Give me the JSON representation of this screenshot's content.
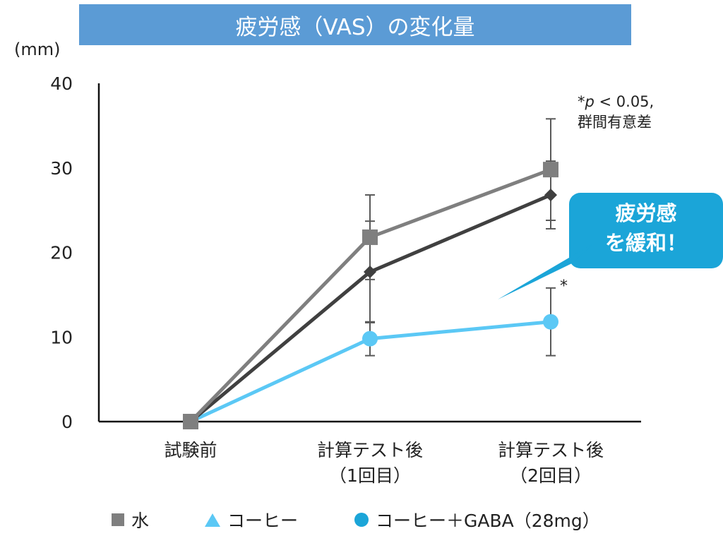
{
  "title": "疲労感（VAS）の変化量",
  "unit_label": "(mm)",
  "note": {
    "p_prefix": "*",
    "p_symbol": "p",
    "p_rest": " < 0.05,",
    "line2": "群間有意差"
  },
  "callout": {
    "line1": "疲労感",
    "line2": "を緩和！",
    "color": "#1ba5d8"
  },
  "significance_marker": "*",
  "chart_data": {
    "type": "line",
    "title": "疲労感（VAS）の変化量",
    "ylabel": "(mm)",
    "xlabel": "",
    "ylim": [
      0,
      40
    ],
    "yticks": [
      0,
      10,
      20,
      30,
      40
    ],
    "categories": [
      {
        "line1": "試験前",
        "line2": ""
      },
      {
        "line1": "計算テスト後",
        "line2": "（1回目）"
      },
      {
        "line1": "計算テスト後",
        "line2": "（2回目）"
      }
    ],
    "series": [
      {
        "name": "水",
        "marker": "square",
        "color": "#7f7f7f",
        "values": [
          0,
          21.8,
          29.8
        ],
        "errors": [
          0,
          5.0,
          6.0
        ]
      },
      {
        "name": "コーヒー",
        "marker": "diamond",
        "legend_marker": "triangle",
        "color": "#404040",
        "legend_color": "#5bc8f5",
        "values": [
          0,
          17.7,
          26.8
        ],
        "errors": [
          0,
          6.0,
          4.0
        ]
      },
      {
        "name": "コーヒー＋GABA（28mg）",
        "marker": "circle",
        "color": "#5bc8f5",
        "legend_color": "#1ba5d8",
        "values": [
          0,
          9.8,
          11.8
        ],
        "errors": [
          0,
          2.0,
          4.0
        ]
      }
    ],
    "grid": false,
    "legend_position": "bottom"
  }
}
